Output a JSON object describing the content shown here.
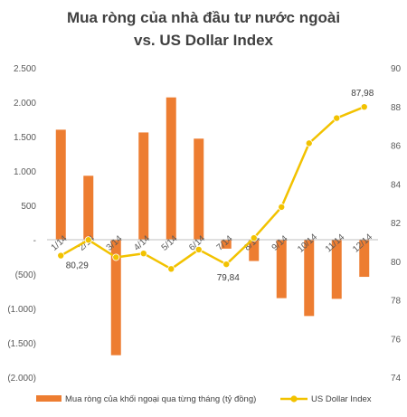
{
  "chart_data": {
    "type": "bar",
    "title_lines": [
      "Mua ròng của nhà đầu tư nước ngoài",
      "vs. US Dollar Index"
    ],
    "categories": [
      "1/14",
      "2/14",
      "3/14",
      "4/14",
      "5/14",
      "6/14",
      "7/14",
      "8/14",
      "9/14",
      "10/14",
      "11/14",
      "12/14"
    ],
    "y_left": {
      "range": [
        -2000,
        2500
      ],
      "ticks": [
        2500,
        2000,
        1500,
        1000,
        500,
        0,
        -500,
        -1000,
        -1500,
        -2000
      ],
      "tick_labels": [
        "2.500",
        "2.000",
        "1.500",
        "1.000",
        "500",
        "-",
        "(500)",
        "(1.000)",
        "(1.500)",
        "(2.000)"
      ]
    },
    "y_right": {
      "range": [
        74,
        90
      ],
      "ticks": [
        90,
        88,
        86,
        84,
        82,
        80,
        78,
        76,
        74
      ],
      "tick_labels": [
        "90",
        "88",
        "86",
        "84",
        "82",
        "80",
        "78",
        "76",
        "74"
      ]
    },
    "series": [
      {
        "name": "Mua ròng của khối ngoại qua từng tháng (tỷ đồng)",
        "type": "bar",
        "axis": "left",
        "color": "#ED7D31",
        "values": [
          1600,
          930,
          -1680,
          1560,
          2070,
          1470,
          -130,
          -310,
          -850,
          -1110,
          -860,
          -540
        ]
      },
      {
        "name": "US Dollar Index",
        "type": "line",
        "axis": "right",
        "color": "#F2C200",
        "values": [
          80.29,
          81.1,
          80.2,
          80.4,
          79.6,
          80.6,
          79.84,
          81.2,
          82.8,
          86.1,
          87.4,
          87.98
        ]
      }
    ],
    "data_labels": [
      {
        "series": 1,
        "index": 0,
        "text": "80,29"
      },
      {
        "series": 1,
        "index": 6,
        "text": "79,84"
      },
      {
        "series": 1,
        "index": 11,
        "text": "87,98"
      }
    ],
    "legend": "bottom",
    "grid": false
  }
}
